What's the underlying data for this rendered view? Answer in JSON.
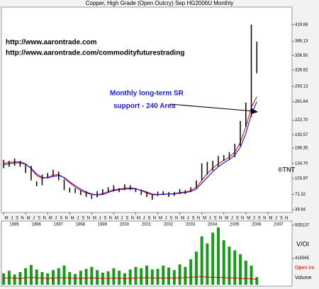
{
  "chart_data": [
    {
      "type": "ohlc",
      "title": "Copper, High Grade (Open Outcry) Sep HG2006U Monthly",
      "annotations": [
        "http://www.aarontrade.com",
        "http://www.aarontrade.com/commodityfuturestrading",
        "Monthly long-term SR",
        "support - 240 Area",
        "®TNT"
      ],
      "x": [
        1995,
        1995.25,
        1995.5,
        1995.75,
        1996,
        1996.25,
        1996.5,
        1996.75,
        1997,
        1997.25,
        1997.5,
        1997.75,
        1998,
        1998.25,
        1998.5,
        1998.75,
        1999,
        1999.25,
        1999.5,
        1999.75,
        2000,
        2000.25,
        2000.5,
        2000.75,
        2001,
        2001.25,
        2001.5,
        2001.75,
        2002,
        2002.25,
        2002.5,
        2002.75,
        2003,
        2003.25,
        2003.5,
        2003.75,
        2004,
        2004.25,
        2004.5,
        2004.75,
        2005,
        2005.25,
        2005.5,
        2005.75,
        2006,
        2006.25,
        2006.5
      ],
      "high": [
        142,
        140,
        145,
        140,
        132,
        130,
        98,
        112,
        115,
        122,
        118,
        102,
        85,
        84,
        80,
        78,
        70,
        78,
        82,
        86,
        90,
        84,
        92,
        90,
        84,
        80,
        76,
        70,
        77,
        78,
        76,
        76,
        82,
        80,
        86,
        100,
        135,
        138,
        140,
        150,
        152,
        158,
        175,
        222,
        260,
        420,
        385
      ],
      "low": [
        125,
        128,
        130,
        128,
        115,
        100,
        88,
        90,
        105,
        108,
        100,
        80,
        75,
        74,
        70,
        66,
        62,
        65,
        72,
        76,
        77,
        76,
        80,
        80,
        76,
        70,
        66,
        60,
        68,
        70,
        66,
        68,
        72,
        72,
        76,
        84,
        100,
        112,
        120,
        128,
        140,
        142,
        148,
        170,
        210,
        230,
        320
      ],
      "color": "#000000",
      "ma_lines": [
        {
          "color": "#e00000",
          "values": [
            135,
            137,
            138,
            138,
            134,
            124,
            110,
            104,
            106,
            111,
            112,
            105,
            95,
            86,
            79,
            74,
            71,
            70,
            73,
            77,
            81,
            82,
            84,
            85,
            83,
            79,
            74,
            70,
            71,
            72,
            72,
            73,
            75,
            76,
            79,
            86,
            100,
            114,
            125,
            134,
            141,
            148,
            158,
            178,
            210,
            250,
            272
          ]
        },
        {
          "color": "#0000e0",
          "values": [
            132,
            134,
            136,
            136,
            133,
            125,
            113,
            106,
            105,
            108,
            110,
            106,
            97,
            89,
            82,
            76,
            72,
            70,
            71,
            75,
            79,
            81,
            82,
            83,
            82,
            80,
            76,
            72,
            71,
            71,
            72,
            72,
            74,
            75,
            77,
            82,
            94,
            106,
            118,
            128,
            136,
            143,
            152,
            168,
            196,
            235,
            262
          ]
        }
      ],
      "xlim": [
        1994.9,
        2008.1
      ],
      "xticks": [
        1995,
        1996,
        1997,
        1998,
        1999,
        2000,
        2001,
        2002,
        2003,
        2004,
        2005,
        2006,
        2007
      ],
      "x_month_labels": [
        "M",
        "J",
        "S",
        "N"
      ],
      "ylim": [
        34,
        456
      ],
      "yticks": [
        {
          "value": 419.88,
          "label": "419.88"
        },
        386.13,
        {
          "value": 356.5,
          "label": "356.50"
        },
        326.82,
        293.13,
        261.64,
        {
          "value": 223.7,
          "label": "223.70"
        },
        193.57,
        166.35,
        {
          "value": 134.7,
          "label": "134.70"
        },
        103.97,
        71.32,
        39.64
      ]
    },
    {
      "type": "bar",
      "annotations": [
        "V/OI",
        "Open Int.",
        "Volume"
      ],
      "x": [
        1995,
        1995.25,
        1995.5,
        1995.75,
        1996,
        1996.25,
        1996.5,
        1996.75,
        1997,
        1997.25,
        1997.5,
        1997.75,
        1998,
        1998.25,
        1998.5,
        1998.75,
        1999,
        1999.25,
        1999.5,
        1999.75,
        2000,
        2000.25,
        2000.5,
        2000.75,
        2001,
        2001.25,
        2001.5,
        2001.75,
        2002,
        2002.25,
        2002.5,
        2002.75,
        2003,
        2003.25,
        2003.5,
        2003.75,
        2004,
        2004.25,
        2004.5,
        2004.75,
        2005,
        2005.25,
        2005.5,
        2005.75,
        2006,
        2006.25,
        2006.5
      ],
      "values": [
        180000,
        220000,
        160000,
        200000,
        260000,
        310000,
        240000,
        200000,
        180000,
        230000,
        260000,
        300000,
        200000,
        170000,
        220000,
        250000,
        280000,
        230000,
        190000,
        210000,
        260000,
        220000,
        180000,
        240000,
        280000,
        260000,
        300000,
        240000,
        250000,
        300000,
        270000,
        230000,
        320000,
        280000,
        400000,
        520000,
        760000,
        650000,
        820000,
        900000,
        700000,
        600000,
        540000,
        480000,
        380000,
        300000,
        120000
      ],
      "color": "#1a9a1a",
      "open_interest": {
        "color": "#d00000",
        "values": [
          100000,
          110000,
          105000,
          100000,
          108000,
          115000,
          110000,
          104000,
          100000,
          106000,
          110000,
          112000,
          104000,
          100000,
          102000,
          106000,
          110000,
          104000,
          100000,
          102000,
          106000,
          104000,
          100000,
          102000,
          106000,
          110000,
          112000,
          108000,
          104000,
          106000,
          108000,
          106000,
          110000,
          112000,
          118000,
          122000,
          126000,
          120000,
          118000,
          116000,
          112000,
          108000,
          104000,
          100000,
          96000,
          92000,
          88000
        ]
      },
      "ylim": [
        0,
        935137
      ],
      "yticks": [
        935137,
        415565
      ]
    }
  ]
}
